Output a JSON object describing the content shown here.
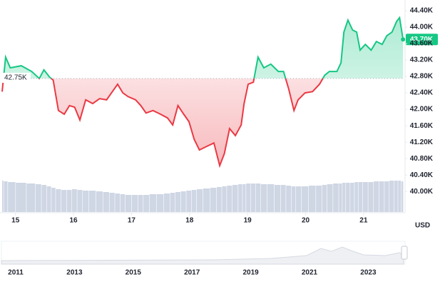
{
  "chart_data": {
    "type": "baseline-line",
    "x": [
      14.77,
      14.83,
      14.91,
      15.1,
      15.28,
      15.41,
      15.49,
      15.59,
      15.65,
      15.74,
      15.84,
      15.93,
      16.02,
      16.11,
      16.21,
      16.33,
      16.45,
      16.57,
      16.67,
      16.76,
      16.85,
      16.94,
      17.07,
      17.16,
      17.25,
      17.37,
      17.5,
      17.62,
      17.71,
      17.8,
      17.9,
      17.99,
      18.08,
      18.17,
      18.3,
      18.42,
      18.52,
      18.6,
      18.69,
      18.79,
      18.89,
      18.94,
      19.01,
      19.1,
      19.18,
      19.28,
      19.4,
      19.53,
      19.62,
      19.71,
      19.8,
      19.87,
      19.99,
      20.12,
      20.24,
      20.33,
      20.41,
      20.54,
      20.61,
      20.66,
      20.73,
      20.81,
      20.88,
      20.94,
      21.03,
      21.13,
      21.22,
      21.32,
      21.4,
      21.49,
      21.57,
      21.62,
      21.68
    ],
    "values": [
      42.43,
      43.27,
      43.01,
      43.06,
      42.92,
      42.75,
      42.96,
      42.78,
      42.71,
      41.97,
      41.88,
      42.09,
      42.05,
      41.74,
      42.23,
      42.14,
      42.26,
      42.23,
      42.43,
      42.61,
      42.4,
      42.31,
      42.23,
      42.09,
      41.91,
      41.97,
      41.88,
      41.79,
      41.62,
      42.09,
      41.88,
      41.7,
      41.27,
      41.01,
      41.1,
      41.18,
      40.63,
      40.92,
      41.53,
      41.36,
      41.62,
      42.14,
      42.61,
      42.66,
      43.27,
      43.01,
      43.1,
      42.92,
      42.92,
      42.49,
      41.97,
      42.23,
      42.4,
      42.43,
      42.61,
      42.83,
      42.92,
      42.92,
      43.13,
      43.88,
      44.17,
      43.93,
      43.88,
      43.44,
      43.58,
      43.44,
      43.65,
      43.58,
      43.79,
      43.88,
      44.14,
      44.23,
      43.7
    ],
    "volume": [
      44,
      43,
      42,
      41,
      40,
      39,
      38,
      36,
      34,
      32,
      31,
      31,
      32,
      31,
      30,
      30,
      29,
      28,
      27,
      26,
      25,
      24,
      24,
      24,
      24,
      25,
      25,
      26,
      27,
      28,
      29,
      30,
      31,
      32,
      33,
      34,
      35,
      36,
      37,
      38,
      39,
      39,
      40,
      40,
      40,
      39,
      39,
      38,
      38,
      37,
      36,
      36,
      36,
      37,
      37,
      38,
      39,
      40,
      40,
      41,
      41,
      41,
      42,
      42,
      42,
      42,
      43,
      43,
      43,
      44,
      44,
      44,
      43
    ],
    "up_color": "#16c784",
    "down_color": "#ea3943",
    "volume_color": "#cfd6e4",
    "baseline": {
      "value": 42.75,
      "label": "42.75K"
    },
    "current_price": {
      "value": 43.7,
      "label": "43.70K"
    },
    "xlim": [
      14.77,
      21.69
    ],
    "xticks": [
      15,
      16,
      17,
      18,
      19,
      20,
      21
    ],
    "ylim": [
      39.5,
      44.66
    ],
    "yticks": [
      {
        "value": 40.0,
        "label": "40.00K"
      },
      {
        "value": 40.4,
        "label": "40.40K"
      },
      {
        "value": 40.8,
        "label": "40.80K"
      },
      {
        "value": 41.2,
        "label": "41.20K"
      },
      {
        "value": 41.6,
        "label": "41.60K"
      },
      {
        "value": 42.0,
        "label": "42.00K"
      },
      {
        "value": 42.4,
        "label": "42.40K"
      },
      {
        "value": 42.8,
        "label": "42.80K"
      },
      {
        "value": 43.2,
        "label": "43.20K"
      },
      {
        "value": 43.6,
        "label": "43.60K"
      },
      {
        "value": 44.0,
        "label": "44.00K"
      },
      {
        "value": 44.4,
        "label": "44.40K"
      }
    ],
    "currency": "USD",
    "navigator": {
      "xticks": [
        2011,
        2013,
        2015,
        2017,
        2019,
        2021,
        2023
      ]
    }
  }
}
